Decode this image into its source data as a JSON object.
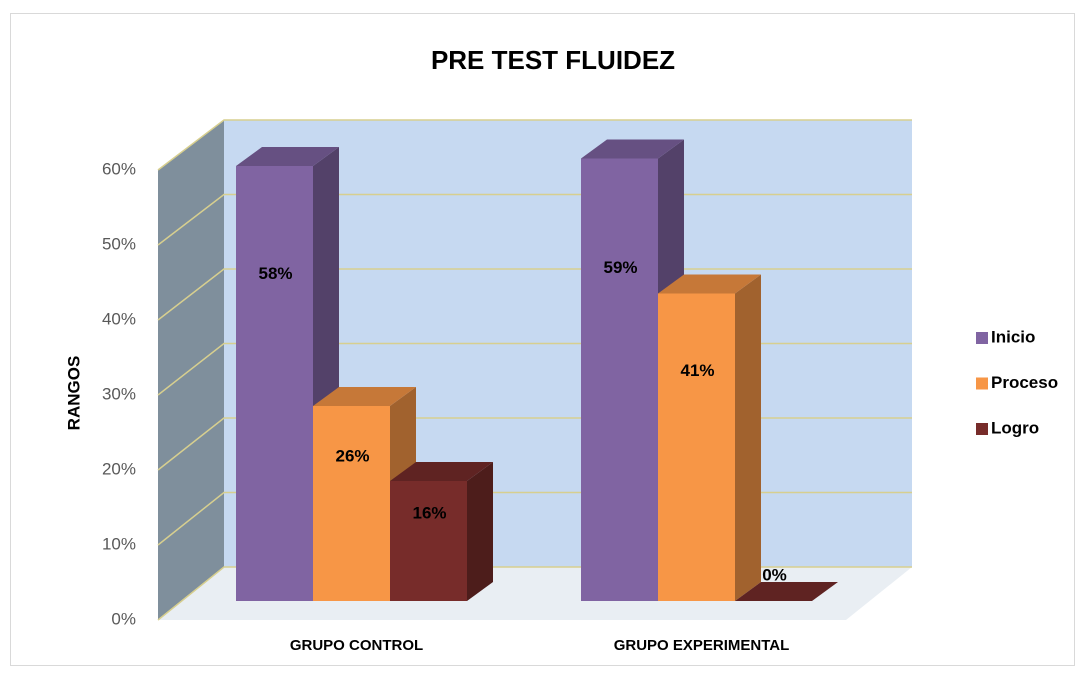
{
  "chart_data": {
    "type": "bar3d",
    "title": "PRE TEST FLUIDEZ",
    "y_label": "RANGOS",
    "categories": [
      "GRUPO CONTROL",
      "GRUPO EXPERIMENTAL"
    ],
    "series": [
      {
        "name": "Inicio",
        "color": "#8064a2",
        "values": [
          58,
          59
        ],
        "value_labels": [
          "58%",
          "59%"
        ]
      },
      {
        "name": "Proceso",
        "color": "#f79646",
        "values": [
          26,
          41
        ],
        "value_labels": [
          "26%",
          "41%"
        ]
      },
      {
        "name": "Logro",
        "color": "#772c2a",
        "values": [
          16,
          0
        ],
        "value_labels": [
          "16%",
          "0%"
        ]
      }
    ],
    "ylim": [
      0,
      60
    ],
    "yticks": [
      {
        "value": 0,
        "label": "0%"
      },
      {
        "value": 10,
        "label": "10%"
      },
      {
        "value": 20,
        "label": "20%"
      },
      {
        "value": 30,
        "label": "30%"
      },
      {
        "value": 40,
        "label": "40%"
      },
      {
        "value": 50,
        "label": "50%"
      },
      {
        "value": 60,
        "label": "60%"
      }
    ],
    "grid": true,
    "legend": "right"
  }
}
